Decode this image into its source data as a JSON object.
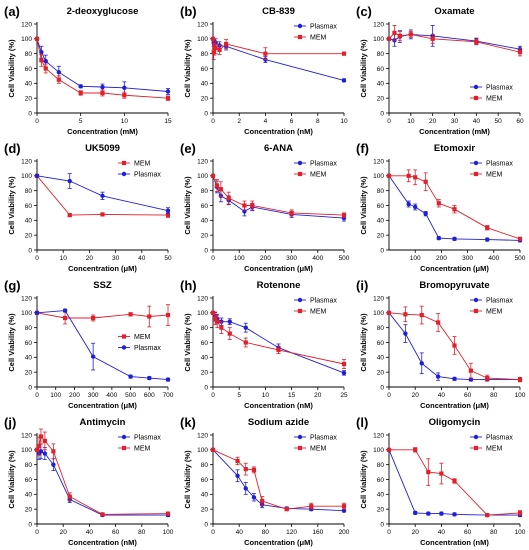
{
  "figure": {
    "colors": {
      "Plasmax": "#1f1fd6",
      "MEM": "#e0202a"
    }
  },
  "chart_data": [
    {
      "type": "line",
      "panel": "(a)",
      "title": "2-deoxyglucose",
      "xlabel": "Concentration (mM)",
      "ylabel": "Cell Viability (%)",
      "xlim": [
        0,
        15
      ],
      "ylim": [
        0,
        120
      ],
      "xticks": [
        0,
        5,
        10,
        15
      ],
      "yticks": [
        0,
        20,
        40,
        60,
        80,
        100,
        120
      ],
      "legend": "none",
      "series": [
        {
          "name": "Plasmax",
          "x": [
            0,
            0.5,
            1,
            2.5,
            5,
            7.5,
            10,
            15
          ],
          "y": [
            100,
            82,
            70,
            55,
            36,
            35,
            34,
            29
          ],
          "err": [
            0,
            8,
            8,
            8,
            2,
            4,
            8,
            4
          ]
        },
        {
          "name": "MEM",
          "x": [
            0,
            0.5,
            1,
            2.5,
            5,
            7.5,
            10,
            15
          ],
          "y": [
            100,
            71,
            60,
            45,
            27,
            27,
            24,
            20
          ],
          "err": [
            0,
            8,
            6,
            5,
            3,
            4,
            4,
            3
          ]
        }
      ]
    },
    {
      "type": "line",
      "panel": "(b)",
      "title": "CB-839",
      "xlabel": "Concentration (nM)",
      "ylabel": "Cell Viability (%)",
      "xlim": [
        0,
        10
      ],
      "ylim": [
        0,
        120
      ],
      "xticks": [
        0,
        2,
        4,
        6,
        8,
        10
      ],
      "yticks": [
        0,
        20,
        40,
        60,
        80,
        100,
        120
      ],
      "legend": "top-right",
      "series": [
        {
          "name": "Plasmax",
          "x": [
            0,
            0.05,
            0.1,
            0.2,
            0.5,
            1,
            4,
            10
          ],
          "y": [
            100,
            95,
            92,
            95,
            91,
            90,
            72,
            44
          ],
          "err": [
            0,
            5,
            6,
            5,
            5,
            5,
            4,
            2
          ]
        },
        {
          "name": "MEM",
          "x": [
            0,
            0.05,
            0.1,
            0.2,
            0.5,
            1,
            4,
            10
          ],
          "y": [
            100,
            82,
            86,
            88,
            85,
            93,
            80,
            80
          ],
          "err": [
            0,
            10,
            8,
            8,
            6,
            6,
            8,
            2
          ]
        }
      ]
    },
    {
      "type": "line",
      "panel": "(c)",
      "title": "Oxamate",
      "xlabel": "Concentration (mM)",
      "ylabel": "Cell Viability (%)",
      "xlim": [
        0,
        60
      ],
      "ylim": [
        0,
        120
      ],
      "xticks": [
        0,
        10,
        20,
        30,
        40,
        50,
        60
      ],
      "yticks": [
        0,
        20,
        40,
        60,
        80,
        100,
        120
      ],
      "legend": "bottom-right",
      "series": [
        {
          "name": "Plasmax",
          "x": [
            0,
            2.5,
            5,
            10,
            20,
            40,
            60
          ],
          "y": [
            100,
            98,
            103,
            106,
            104,
            97,
            86
          ],
          "err": [
            0,
            8,
            8,
            6,
            14,
            4,
            4
          ]
        },
        {
          "name": "MEM",
          "x": [
            0,
            2.5,
            5,
            10,
            20,
            40,
            60
          ],
          "y": [
            100,
            108,
            104,
            106,
            100,
            96,
            82
          ],
          "err": [
            0,
            10,
            6,
            4,
            6,
            4,
            5
          ]
        }
      ]
    },
    {
      "type": "line",
      "panel": "(d)",
      "title": "UK5099",
      "xlabel": "Concentration (μM)",
      "ylabel": "Cell Viability (%)",
      "xlim": [
        0,
        50
      ],
      "ylim": [
        0,
        120
      ],
      "xticks": [
        0,
        10,
        20,
        30,
        40,
        50
      ],
      "yticks": [
        0,
        20,
        40,
        60,
        80,
        100,
        120
      ],
      "legend": "top-right",
      "series": [
        {
          "name": "MEM",
          "x": [
            0,
            12.5,
            25,
            50
          ],
          "y": [
            100,
            47,
            48,
            47
          ],
          "err": [
            0,
            2,
            2,
            3
          ]
        },
        {
          "name": "Plasmax",
          "x": [
            0,
            12.5,
            25,
            50
          ],
          "y": [
            100,
            93,
            73,
            53
          ],
          "err": [
            0,
            10,
            5,
            4
          ]
        }
      ]
    },
    {
      "type": "line",
      "panel": "(e)",
      "title": "6-ANA",
      "xlabel": "Concentration (μM)",
      "ylabel": "Cell Viability (%)",
      "xlim": [
        0,
        500
      ],
      "ylim": [
        0,
        120
      ],
      "xticks": [
        0,
        100,
        200,
        300,
        400,
        500
      ],
      "yticks": [
        0,
        20,
        40,
        60,
        80,
        100,
        120
      ],
      "legend": "top-right",
      "series": [
        {
          "name": "Plasmax",
          "x": [
            0,
            15,
            30,
            60,
            120,
            150,
            300,
            500
          ],
          "y": [
            100,
            85,
            73,
            67,
            52,
            58,
            48,
            43
          ],
          "err": [
            0,
            8,
            8,
            6,
            6,
            5,
            4,
            4
          ]
        },
        {
          "name": "MEM",
          "x": [
            0,
            15,
            30,
            60,
            120,
            150,
            300,
            500
          ],
          "y": [
            100,
            87,
            82,
            70,
            60,
            60,
            50,
            47
          ],
          "err": [
            0,
            8,
            10,
            8,
            6,
            6,
            4,
            3
          ]
        }
      ]
    },
    {
      "type": "line",
      "panel": "(f)",
      "title": "Etomoxir",
      "xlabel": "Concentration (μM)",
      "ylabel": "Cell Viability (%)",
      "xlim": [
        0,
        500
      ],
      "ylim": [
        0,
        120
      ],
      "xticks": [
        100,
        200,
        300,
        400,
        500
      ],
      "yticks": [
        0,
        20,
        40,
        60,
        80,
        100,
        120
      ],
      "legend": "top-right",
      "series": [
        {
          "name": "Plasmax",
          "x": [
            0,
            75,
            100,
            140,
            190,
            250,
            375,
            500
          ],
          "y": [
            100,
            62,
            58,
            49,
            16,
            15,
            14,
            13
          ],
          "err": [
            0,
            4,
            4,
            3,
            2,
            2,
            2,
            2
          ]
        },
        {
          "name": "MEM",
          "x": [
            0,
            75,
            100,
            140,
            190,
            250,
            375,
            500
          ],
          "y": [
            100,
            100,
            98,
            92,
            63,
            55,
            30,
            15
          ],
          "err": [
            0,
            8,
            10,
            12,
            5,
            5,
            3,
            2
          ]
        }
      ]
    },
    {
      "type": "line",
      "panel": "(g)",
      "title": "SSZ",
      "xlabel": "Concentration (μM)",
      "ylabel": "Cell Viability (%)",
      "xlim": [
        0,
        700
      ],
      "ylim": [
        0,
        120
      ],
      "xticks": [
        0,
        100,
        200,
        300,
        400,
        500,
        600,
        700
      ],
      "yticks": [
        0,
        20,
        40,
        60,
        80,
        100,
        120
      ],
      "legend": "center-right",
      "series": [
        {
          "name": "MEM",
          "x": [
            0,
            150,
            300,
            500,
            600,
            700
          ],
          "y": [
            100,
            93,
            93,
            98,
            95,
            97
          ],
          "err": [
            0,
            8,
            4,
            2,
            14,
            14
          ]
        },
        {
          "name": "Plasmax",
          "x": [
            0,
            150,
            300,
            500,
            600,
            700
          ],
          "y": [
            100,
            103,
            41,
            14,
            12,
            10
          ],
          "err": [
            0,
            2,
            18,
            2,
            2,
            2
          ]
        }
      ]
    },
    {
      "type": "line",
      "panel": "(h)",
      "title": "Rotenone",
      "xlabel": "Concentration (nM)",
      "ylabel": "Cell Viability (%)",
      "xlim": [
        0,
        25
      ],
      "ylim": [
        0,
        120
      ],
      "xticks": [
        0,
        5,
        10,
        15,
        20,
        25
      ],
      "yticks": [
        0,
        20,
        40,
        60,
        80,
        100,
        120
      ],
      "legend": "top-right",
      "series": [
        {
          "name": "Plasmax",
          "x": [
            0,
            0.4,
            0.8,
            1.6,
            3.2,
            6.25,
            12.5,
            25
          ],
          "y": [
            100,
            95,
            92,
            88,
            88,
            80,
            53,
            19
          ],
          "err": [
            0,
            6,
            6,
            5,
            4,
            6,
            5,
            3
          ]
        },
        {
          "name": "MEM",
          "x": [
            0,
            0.4,
            0.8,
            1.6,
            3.2,
            6.25,
            12.5,
            25
          ],
          "y": [
            100,
            92,
            88,
            80,
            72,
            60,
            50,
            31
          ],
          "err": [
            0,
            8,
            8,
            8,
            8,
            6,
            5,
            6
          ]
        }
      ]
    },
    {
      "type": "line",
      "panel": "(i)",
      "title": "Bromopyruvate",
      "xlabel": "Concentration (μM)",
      "ylabel": "Cell Viability (%)",
      "xlim": [
        0,
        100
      ],
      "ylim": [
        0,
        120
      ],
      "xticks": [
        0,
        20,
        40,
        60,
        80,
        100
      ],
      "yticks": [
        0,
        20,
        40,
        60,
        80,
        100,
        120
      ],
      "legend": "top-right",
      "series": [
        {
          "name": "Plasmax",
          "x": [
            0,
            12.5,
            25,
            37.5,
            50,
            62.5,
            75,
            100
          ],
          "y": [
            100,
            72,
            32,
            14,
            11,
            10,
            10,
            10
          ],
          "err": [
            0,
            12,
            14,
            5,
            2,
            2,
            2,
            2
          ]
        },
        {
          "name": "MEM",
          "x": [
            0,
            12.5,
            25,
            37.5,
            50,
            62.5,
            75,
            100
          ],
          "y": [
            100,
            98,
            97,
            87,
            56,
            22,
            12,
            10
          ],
          "err": [
            0,
            10,
            12,
            12,
            12,
            10,
            4,
            3
          ]
        }
      ]
    },
    {
      "type": "line",
      "panel": "(j)",
      "title": "Antimycin",
      "xlabel": "Concentration (nM)",
      "ylabel": "Cell Viability (%)",
      "xlim": [
        0,
        100
      ],
      "ylim": [
        0,
        120
      ],
      "xticks": [
        0,
        20,
        40,
        60,
        80,
        100
      ],
      "yticks": [
        0,
        20,
        40,
        60,
        80,
        100,
        120
      ],
      "legend": "top-right",
      "series": [
        {
          "name": "Plasmax",
          "x": [
            0,
            1.5,
            3,
            6,
            12.5,
            25,
            50,
            100
          ],
          "y": [
            100,
            95,
            98,
            95,
            80,
            33,
            12,
            12
          ],
          "err": [
            0,
            8,
            10,
            8,
            8,
            4,
            2,
            2
          ]
        },
        {
          "name": "MEM",
          "x": [
            0,
            1.5,
            3,
            6,
            12.5,
            25,
            50,
            100
          ],
          "y": [
            100,
            105,
            118,
            112,
            98,
            37,
            13,
            14
          ],
          "err": [
            0,
            12,
            10,
            12,
            10,
            5,
            2,
            2
          ]
        }
      ]
    },
    {
      "type": "line",
      "panel": "(k)",
      "title": "Sodium azide",
      "xlabel": "Concentration (μM)",
      "ylabel": "Cell Viability (%)",
      "xlim": [
        0,
        200
      ],
      "ylim": [
        0,
        120
      ],
      "xticks": [
        0,
        40,
        80,
        120,
        160,
        200
      ],
      "yticks": [
        0,
        20,
        40,
        60,
        80,
        100,
        120
      ],
      "legend": "top-right",
      "series": [
        {
          "name": "Plasmax",
          "x": [
            0,
            37.5,
            50,
            62.5,
            75,
            112.5,
            150,
            200
          ],
          "y": [
            100,
            65,
            48,
            36,
            26,
            21,
            20,
            18
          ],
          "err": [
            0,
            8,
            8,
            5,
            4,
            2,
            2,
            2
          ]
        },
        {
          "name": "MEM",
          "x": [
            0,
            37.5,
            50,
            62.5,
            75,
            112.5,
            150,
            200
          ],
          "y": [
            100,
            85,
            74,
            73,
            31,
            20,
            24,
            24
          ],
          "err": [
            0,
            5,
            8,
            4,
            6,
            2,
            4,
            4
          ]
        }
      ]
    },
    {
      "type": "line",
      "panel": "(l)",
      "title": "Oligomycin",
      "xlabel": "Concentration (nM)",
      "ylabel": "Cell Viability (%)",
      "xlim": [
        0,
        100
      ],
      "ylim": [
        0,
        120
      ],
      "xticks": [
        0,
        20,
        40,
        60,
        80,
        100
      ],
      "yticks": [
        0,
        20,
        40,
        60,
        80,
        100,
        120
      ],
      "legend": "top-right",
      "series": [
        {
          "name": "Plasmax",
          "x": [
            0,
            20,
            30,
            40,
            50,
            75,
            100
          ],
          "y": [
            100,
            15,
            14,
            14,
            13,
            12,
            12
          ],
          "err": [
            0,
            2,
            2,
            2,
            2,
            2,
            2
          ]
        },
        {
          "name": "MEM",
          "x": [
            0,
            20,
            30,
            40,
            50,
            75,
            100
          ],
          "y": [
            100,
            100,
            70,
            68,
            58,
            12,
            15
          ],
          "err": [
            0,
            3,
            18,
            14,
            3,
            2,
            3
          ]
        }
      ]
    }
  ]
}
